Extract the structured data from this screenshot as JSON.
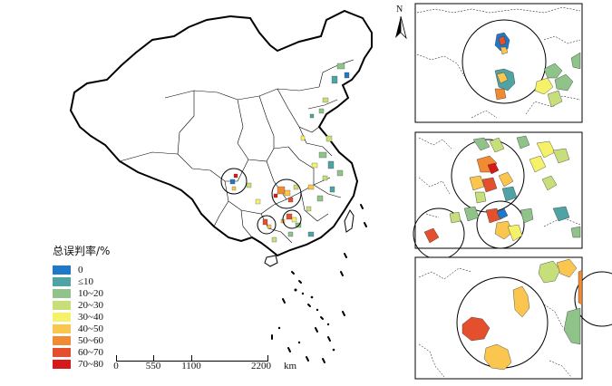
{
  "legend": {
    "title": "总误判率/%",
    "items": [
      {
        "label": "0",
        "color": "#1f78c8"
      },
      {
        "label": "≤10",
        "color": "#4fa3a5"
      },
      {
        "label": "10~20",
        "color": "#8fc38a"
      },
      {
        "label": "20~30",
        "color": "#c6df7a"
      },
      {
        "label": "30~40",
        "color": "#f5f26a"
      },
      {
        "label": "40~50",
        "color": "#fbc64f"
      },
      {
        "label": "50~60",
        "color": "#f08a33"
      },
      {
        "label": "60~70",
        "color": "#e4502d"
      },
      {
        "label": "70~80",
        "color": "#d7191c"
      }
    ]
  },
  "scale_bar": {
    "ticks": [
      "0",
      "550",
      "1100",
      "2200"
    ],
    "unit": "km"
  },
  "north_arrow": {
    "letter": "N"
  }
}
